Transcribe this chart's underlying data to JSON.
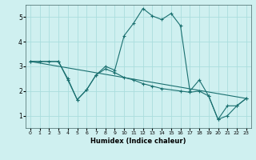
{
  "xlabel": "Humidex (Indice chaleur)",
  "xlim": [
    -0.5,
    23.5
  ],
  "ylim": [
    0.5,
    5.5
  ],
  "yticks": [
    1,
    2,
    3,
    4,
    5
  ],
  "xticks": [
    0,
    1,
    2,
    3,
    4,
    5,
    6,
    7,
    8,
    9,
    10,
    11,
    12,
    13,
    14,
    15,
    16,
    17,
    18,
    19,
    20,
    21,
    22,
    23
  ],
  "bg_color": "#cff0f0",
  "grid_color": "#aadddd",
  "line_color": "#1a7070",
  "lines": [
    {
      "x": [
        0,
        1,
        2,
        3,
        4,
        5,
        6,
        7,
        8,
        9,
        10,
        11,
        12,
        13,
        14,
        15,
        16,
        17,
        18,
        19,
        20,
        21,
        22,
        23
      ],
      "y": [
        3.2,
        3.2,
        3.2,
        3.2,
        2.5,
        1.65,
        2.05,
        2.65,
        3.0,
        2.85,
        4.25,
        4.75,
        5.35,
        5.05,
        4.9,
        5.15,
        4.65,
        2.0,
        2.45,
        1.8,
        0.85,
        1.4,
        1.4,
        1.7
      ],
      "marker": true
    },
    {
      "x": [
        0,
        23
      ],
      "y": [
        3.2,
        1.7
      ],
      "marker": false
    },
    {
      "x": [
        0,
        3,
        4,
        5,
        6,
        7,
        8,
        9,
        10,
        11,
        12,
        13,
        14,
        16,
        17,
        18,
        19,
        20,
        21,
        22,
        23
      ],
      "y": [
        3.2,
        3.2,
        2.45,
        1.65,
        2.05,
        2.65,
        2.9,
        2.75,
        2.55,
        2.45,
        2.3,
        2.2,
        2.1,
        2.0,
        1.95,
        2.0,
        1.8,
        0.85,
        1.0,
        1.4,
        1.7
      ],
      "marker": true
    }
  ]
}
